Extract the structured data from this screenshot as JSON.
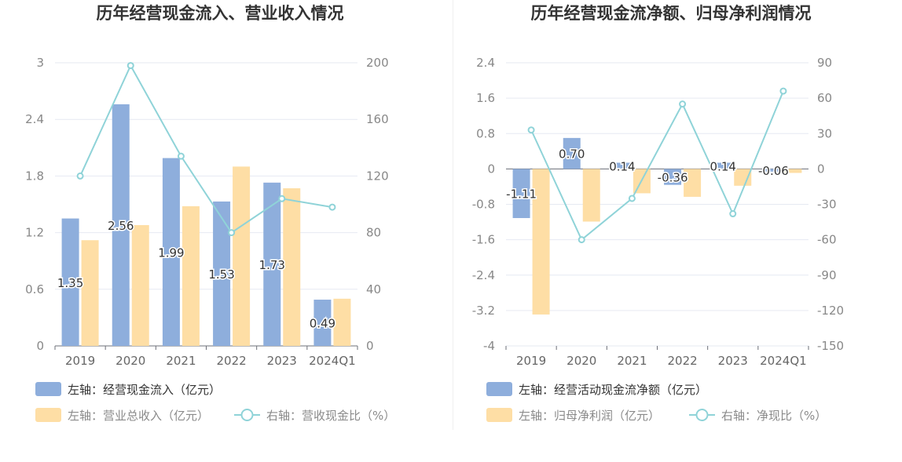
{
  "chart_data": [
    {
      "type": "bar",
      "title": "历年经营现金流入、营业收入情况",
      "categories": [
        "2019",
        "2020",
        "2021",
        "2022",
        "2023",
        "2024Q1"
      ],
      "left_axis": {
        "ticks": [
          "0",
          "0.6",
          "1.2",
          "1.8",
          "2.4",
          "3"
        ],
        "ylim": [
          0,
          3
        ]
      },
      "right_axis": {
        "ticks": [
          "0",
          "40",
          "80",
          "120",
          "160",
          "200"
        ],
        "ylim": [
          0,
          200
        ]
      },
      "series": [
        {
          "name": "左轴：经营现金流入（亿元）",
          "axis": "left",
          "type": "bar",
          "color": "#8eaedc",
          "values": [
            1.35,
            2.56,
            1.99,
            1.53,
            1.73,
            0.49
          ],
          "labels": [
            "1.35",
            "2.56",
            "1.99",
            "1.53",
            "1.73",
            "0.49"
          ]
        },
        {
          "name": "左轴：营业总收入（亿元）",
          "axis": "left",
          "type": "bar",
          "color": "#fedea5",
          "values": [
            1.12,
            1.28,
            1.48,
            1.9,
            1.67,
            0.5
          ]
        },
        {
          "name": "右轴：营收现金比（%）",
          "axis": "right",
          "type": "line",
          "color": "#8fd3d8",
          "values": [
            120,
            198,
            134,
            80,
            104,
            98
          ]
        }
      ]
    },
    {
      "type": "bar",
      "title": "历年经营现金流净额、归母净利润情况",
      "categories": [
        "2019",
        "2020",
        "2021",
        "2022",
        "2023",
        "2024Q1"
      ],
      "left_axis": {
        "ticks": [
          "-4",
          "-3.2",
          "-2.4",
          "-1.6",
          "-0.8",
          "0",
          "0.8",
          "1.6",
          "2.4"
        ],
        "ylim": [
          -4,
          2.4
        ]
      },
      "right_axis": {
        "ticks": [
          "-150",
          "-120",
          "-90",
          "-60",
          "-30",
          "0",
          "30",
          "60",
          "90"
        ],
        "ylim": [
          -150,
          90
        ]
      },
      "series": [
        {
          "name": "左轴：经营活动现金流净额（亿元）",
          "axis": "left",
          "type": "bar",
          "color": "#8eaedc",
          "values": [
            -1.11,
            0.7,
            0.14,
            -0.36,
            0.14,
            -0.06
          ],
          "labels": [
            "-1.11",
            "0.70",
            "0.14",
            "-0.36",
            "0.14",
            "-0.06"
          ]
        },
        {
          "name": "左轴：归母净利润（亿元）",
          "axis": "left",
          "type": "bar",
          "color": "#fedea5",
          "values": [
            -3.29,
            -1.19,
            -0.55,
            -0.63,
            -0.38,
            -0.09
          ]
        },
        {
          "name": "右轴：净现比（%）",
          "axis": "right",
          "type": "line",
          "color": "#8fd3d8",
          "values": [
            33,
            -60,
            -25,
            55,
            -38,
            66
          ]
        }
      ]
    }
  ]
}
